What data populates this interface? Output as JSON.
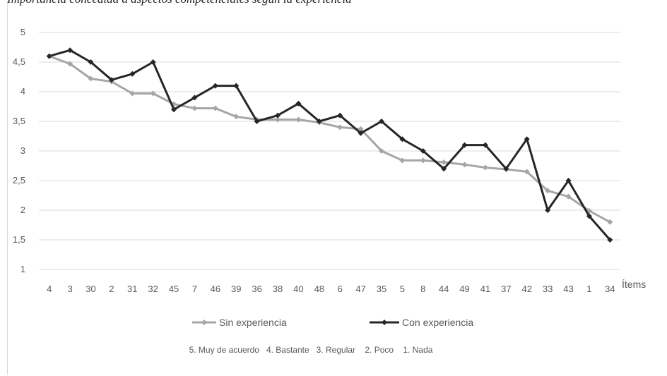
{
  "caption": "Importancia concedida a aspectos competenciales según la experiencia",
  "chart_data": {
    "type": "line",
    "title": "",
    "xlabel": "Ítems",
    "ylabel": "",
    "ylim": [
      1,
      5
    ],
    "yticks": [
      1,
      1.5,
      2,
      2.5,
      3,
      3.5,
      4,
      4.5,
      5
    ],
    "ytick_labels": [
      "1",
      "1,5",
      "2",
      "2,5",
      "3",
      "3,5",
      "4",
      "4,5",
      "5"
    ],
    "grid": true,
    "legend": "bottom",
    "categories": [
      "4",
      "3",
      "30",
      "2",
      "31",
      "32",
      "45",
      "7",
      "46",
      "39",
      "36",
      "38",
      "40",
      "48",
      "6",
      "47",
      "35",
      "5",
      "8",
      "44",
      "49",
      "41",
      "37",
      "42",
      "33",
      "43",
      "1",
      "34"
    ],
    "series": [
      {
        "name": "Sin experiencia",
        "color": "#a6a6a6",
        "values": [
          4.6,
          4.47,
          4.22,
          4.17,
          3.97,
          3.97,
          3.79,
          3.72,
          3.72,
          3.58,
          3.53,
          3.53,
          3.53,
          3.48,
          3.4,
          3.37,
          3.0,
          2.84,
          2.84,
          2.81,
          2.77,
          2.72,
          2.69,
          2.65,
          2.33,
          2.23,
          1.99,
          1.8
        ]
      },
      {
        "name": "Con experiencia",
        "color": "#262626",
        "values": [
          4.6,
          4.7,
          4.5,
          4.2,
          4.3,
          4.5,
          3.7,
          3.9,
          4.1,
          4.1,
          3.5,
          3.6,
          3.8,
          3.5,
          3.6,
          3.3,
          3.5,
          3.2,
          3.0,
          2.7,
          3.1,
          3.1,
          2.7,
          3.2,
          2.0,
          2.5,
          1.9,
          1.5
        ]
      }
    ],
    "scale_note": "5. Muy de acuerdo   4. Bastante   3. Regular    2. Poco    1. Nada"
  }
}
